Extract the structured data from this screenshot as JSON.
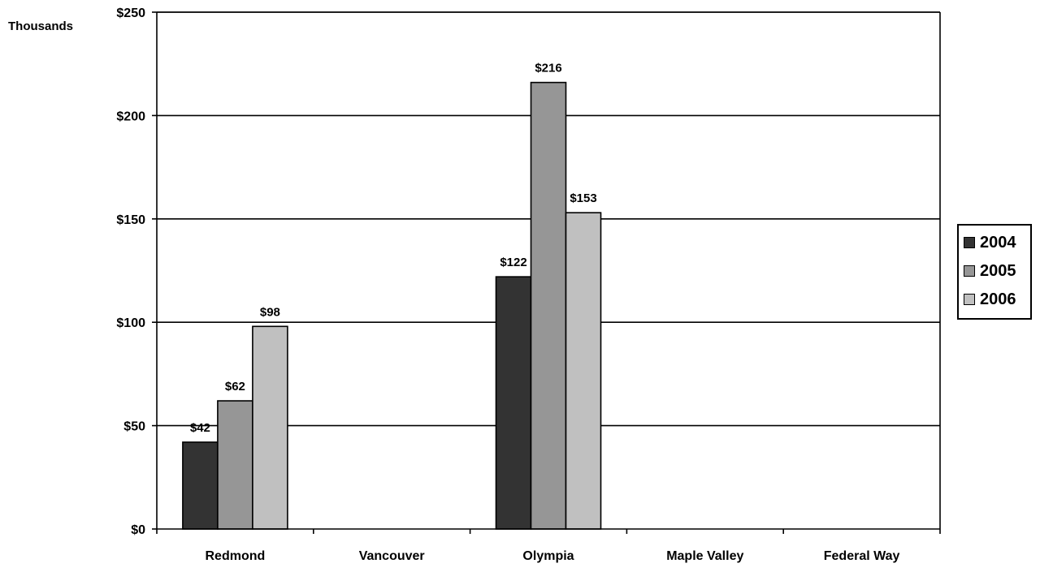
{
  "chart_data": {
    "type": "bar",
    "unit_label": "Thousands",
    "categories": [
      "Redmond",
      "Vancouver",
      "Olympia",
      "Maple Valley",
      "Federal Way"
    ],
    "series": [
      {
        "name": "2004",
        "color": "#333333",
        "values": [
          42,
          null,
          122,
          null,
          null
        ],
        "labels": [
          "$42",
          "",
          "$122",
          "",
          ""
        ]
      },
      {
        "name": "2005",
        "color": "#969696",
        "values": [
          62,
          null,
          216,
          null,
          null
        ],
        "labels": [
          "$62",
          "",
          "$216",
          "",
          ""
        ]
      },
      {
        "name": "2006",
        "color": "#c0c0c0",
        "values": [
          98,
          null,
          153,
          null,
          null
        ],
        "labels": [
          "$98",
          "",
          "$153",
          "",
          ""
        ]
      }
    ],
    "y_ticks": [
      0,
      50,
      100,
      150,
      200,
      250
    ],
    "y_tick_labels": [
      "$0",
      "$50",
      "$100",
      "$150",
      "$200",
      "$250"
    ],
    "ylim": [
      0,
      250
    ],
    "grid": true,
    "legend_position": "right"
  }
}
